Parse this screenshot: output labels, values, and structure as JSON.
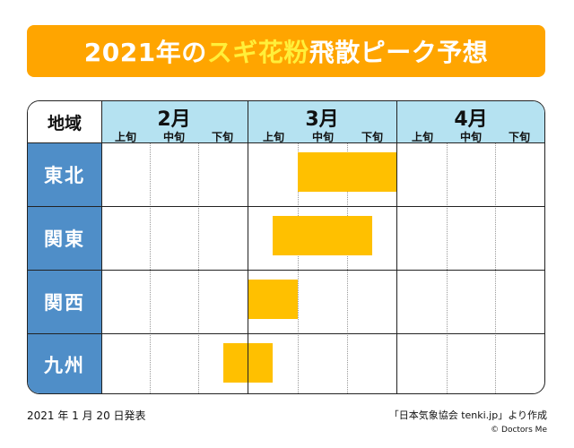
{
  "title": {
    "prefix": "2021年の",
    "highlight": "スギ花粉",
    "suffix": "飛散ピーク予想"
  },
  "table": {
    "region_header": "地域",
    "months": [
      "2月",
      "3月",
      "4月"
    ],
    "dekads": [
      "上旬",
      "中旬",
      "下旬",
      "上旬",
      "中旬",
      "下旬",
      "上旬",
      "中旬",
      "下旬"
    ],
    "regions": [
      "東北",
      "関東",
      "関西",
      "九州"
    ]
  },
  "chart_data": {
    "type": "gantt",
    "unit": "旬 (index 0 = 2月上旬, 9 = end of 4月下旬)",
    "peaks": [
      {
        "region": "東北",
        "start": 4,
        "end": 6.0
      },
      {
        "region": "関東",
        "start": 3.5,
        "end": 5.5
      },
      {
        "region": "関西",
        "start": 3.0,
        "end": 4.0
      },
      {
        "region": "九州",
        "start": 2.5,
        "end": 3.5
      }
    ]
  },
  "footer": {
    "date": "2021 年 1 月 20 日発表",
    "source": "「日本気象協会 tenki.jp」より作成",
    "credit": "© Doctors Me"
  },
  "colors": {
    "banner": "#ffa500",
    "highlight": "#ffef3a",
    "header_blue": "#b5e2f1",
    "region_blue": "#4f8ec8",
    "bar": "#ffc000"
  }
}
